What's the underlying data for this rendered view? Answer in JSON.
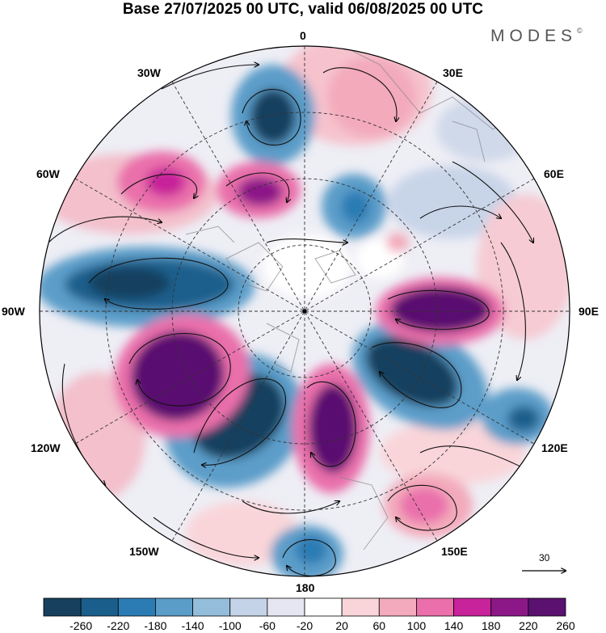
{
  "title": "Base 27/07/2025 00 UTC, valid 06/08/2025 00 UTC",
  "brand": "MODES",
  "brand_mark": "©",
  "longitude_labels": {
    "lon_0": "0",
    "lon_30e": "30E",
    "lon_60e": "60E",
    "lon_90e": "90E",
    "lon_120e": "120E",
    "lon_150e": "150E",
    "lon_180": "180",
    "lon_150w": "150W",
    "lon_120w": "120W",
    "lon_90w": "90W",
    "lon_60w": "60W",
    "lon_30w": "30W"
  },
  "reference_vector_label": "30",
  "colorbar": {
    "labels": [
      "-260",
      "-220",
      "-180",
      "-140",
      "-100",
      "-60",
      "-20",
      "20",
      "60",
      "100",
      "140",
      "180",
      "220",
      "260"
    ],
    "colors": [
      "#17405e",
      "#1a5f8c",
      "#2b7cb4",
      "#5b9dc9",
      "#94bddc",
      "#c5d3e8",
      "#e6e6f2",
      "#ffffff",
      "#f9d5d9",
      "#f3aabb",
      "#ea6fab",
      "#c8239a",
      "#8c1888",
      "#5a1170"
    ]
  },
  "anomaly_colors": {
    "negative_strong": "#17405e",
    "negative": "#2b7cb4",
    "negative_weak": "#94bddc",
    "positive_weak": "#f3aabb",
    "positive": "#ea6fab",
    "positive_strong": "#5a1170"
  }
}
